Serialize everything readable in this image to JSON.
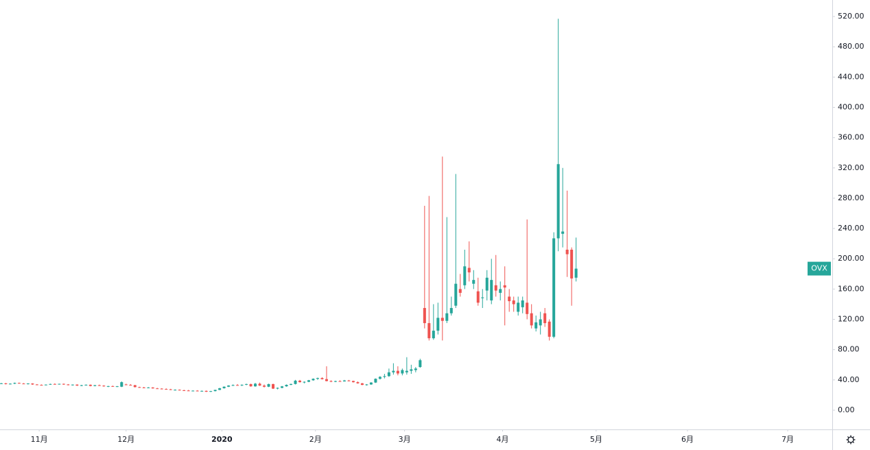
{
  "chart_data": {
    "type": "candlestick",
    "categories": [
      null,
      null,
      null,
      null,
      null,
      null,
      null,
      null,
      null,
      null,
      null,
      null,
      null,
      null,
      null,
      null,
      null,
      null,
      null,
      null,
      null,
      null,
      null,
      null,
      null,
      null,
      null,
      null,
      null,
      null,
      null,
      null,
      null,
      null,
      null,
      null,
      null,
      null,
      null,
      null,
      null,
      null,
      null,
      null,
      null,
      null,
      null,
      null,
      null,
      null,
      null,
      null,
      null,
      null,
      null,
      null,
      null,
      null,
      null,
      null,
      null,
      null,
      null,
      null,
      null,
      null,
      null,
      null,
      null,
      null,
      null,
      null,
      null,
      null,
      null,
      null,
      null,
      null,
      null,
      null,
      null,
      null,
      null,
      null,
      null,
      null,
      null,
      null,
      null,
      null,
      null,
      null,
      null,
      null,
      null,
      null,
      null,
      null,
      null,
      null,
      null,
      null,
      null,
      null,
      null,
      null,
      null,
      null,
      null,
      null,
      null,
      null,
      null,
      null,
      null,
      null,
      null,
      null,
      null,
      null,
      null,
      null,
      null,
      null,
      null,
      null,
      null,
      null,
      null,
      null
    ],
    "series": [
      {
        "name": "OVX",
        "up_color": "#26a69a",
        "down_color": "#ef5350",
        "ohlc": [
          [
            35,
            36,
            34.5,
            35.5
          ],
          [
            35.5,
            36,
            34,
            34.5
          ],
          [
            34.5,
            35.5,
            34,
            35
          ],
          [
            35,
            36.5,
            34.5,
            36
          ],
          [
            36,
            36.5,
            35,
            35.2
          ],
          [
            35.2,
            35.8,
            34.5,
            34.8
          ],
          [
            34.8,
            35.5,
            34,
            35.3
          ],
          [
            35.3,
            35.6,
            33.5,
            34
          ],
          [
            34,
            34.5,
            33,
            33.5
          ],
          [
            33.5,
            34,
            32.5,
            33.2
          ],
          [
            33.2,
            34,
            32.8,
            33.8
          ],
          [
            33.8,
            35,
            33.5,
            34.6
          ],
          [
            34.6,
            35.5,
            34,
            34.2
          ],
          [
            34.2,
            35,
            33.8,
            34.8
          ],
          [
            34.8,
            35.2,
            33.5,
            34
          ],
          [
            34,
            34.5,
            32.8,
            33.2
          ],
          [
            33.2,
            34,
            32.5,
            33.8
          ],
          [
            33.8,
            34.2,
            32,
            32.5
          ],
          [
            32.5,
            33.5,
            31.8,
            33
          ],
          [
            33,
            34,
            32.5,
            33.6
          ],
          [
            33.6,
            34,
            31.5,
            32
          ],
          [
            32,
            33.5,
            31.5,
            33
          ],
          [
            33,
            33.8,
            32,
            32.4
          ],
          [
            32.4,
            33,
            31,
            31.5
          ],
          [
            31.5,
            32.2,
            30.5,
            31.8
          ],
          [
            31.8,
            32.5,
            31,
            31.2
          ],
          [
            31.2,
            32,
            30.5,
            31.6
          ],
          [
            31,
            38,
            30.5,
            37
          ],
          [
            34,
            35,
            33,
            33.5
          ],
          [
            33.5,
            34.5,
            32.5,
            33
          ],
          [
            33,
            33.5,
            30,
            30.5
          ],
          [
            30.5,
            31,
            29.5,
            30
          ],
          [
            30,
            30.8,
            29,
            29.6
          ],
          [
            29.6,
            30.5,
            29,
            30
          ],
          [
            30,
            30.4,
            28.5,
            28.8
          ],
          [
            28.8,
            29.5,
            28,
            28.5
          ],
          [
            28.5,
            29,
            27.5,
            28
          ],
          [
            28,
            28.8,
            27.2,
            27.6
          ],
          [
            27.6,
            28.2,
            26.5,
            26.8
          ],
          [
            26.8,
            27.5,
            26,
            27
          ],
          [
            27,
            27.4,
            26,
            26.3
          ],
          [
            26.3,
            27,
            25.5,
            26
          ],
          [
            26,
            26.8,
            25.2,
            25.6
          ],
          [
            25.6,
            26.2,
            25,
            25.8
          ],
          [
            25.8,
            26.4,
            24.8,
            25.2
          ],
          [
            25.2,
            26,
            24.5,
            25.5
          ],
          [
            25.5,
            26,
            24,
            24.4
          ],
          [
            24.4,
            25.5,
            24,
            25.2
          ],
          [
            25.2,
            27,
            24.8,
            26.8
          ],
          [
            26.8,
            29.5,
            26.5,
            29
          ],
          [
            29,
            31.5,
            28.5,
            31
          ],
          [
            31,
            33,
            30.5,
            32.6
          ],
          [
            32.6,
            34,
            32,
            33.2
          ],
          [
            33.2,
            34.5,
            32.5,
            32.8
          ],
          [
            32.8,
            34,
            32,
            33.6
          ],
          [
            33.6,
            35,
            33,
            34.5
          ],
          [
            34.5,
            35,
            31,
            31.5
          ],
          [
            31.5,
            36,
            31,
            35
          ],
          [
            35,
            36.5,
            32,
            32.5
          ],
          [
            32.5,
            34,
            30,
            31
          ],
          [
            31,
            35,
            30.5,
            34.5
          ],
          [
            34.5,
            35,
            28,
            28.5
          ],
          [
            28.5,
            30,
            27.5,
            29.5
          ],
          [
            29.5,
            32,
            29,
            31.5
          ],
          [
            31.5,
            34,
            31,
            33.5
          ],
          [
            33.5,
            35,
            33,
            34.6
          ],
          [
            34.6,
            40,
            34,
            39
          ],
          [
            39,
            40,
            36.5,
            37
          ],
          [
            37,
            38,
            35.5,
            37.5
          ],
          [
            37.5,
            40,
            37,
            39.5
          ],
          [
            39.5,
            42,
            39,
            41.5
          ],
          [
            41.5,
            43,
            40,
            42.5
          ],
          [
            42.5,
            43.5,
            40.5,
            41
          ],
          [
            41,
            58,
            38,
            38.5
          ],
          [
            38.5,
            39.5,
            37,
            37.6
          ],
          [
            37.6,
            39,
            37,
            38.4
          ],
          [
            38.4,
            39.5,
            37.5,
            38
          ],
          [
            38,
            40,
            37.8,
            39.2
          ],
          [
            39.2,
            40,
            38,
            38.6
          ],
          [
            38.6,
            39,
            36.5,
            37
          ],
          [
            37,
            38,
            35,
            35.5
          ],
          [
            35.5,
            36,
            33,
            33.4
          ],
          [
            33.4,
            34.5,
            32.5,
            34
          ],
          [
            34,
            37,
            33.5,
            36.5
          ],
          [
            36.5,
            42,
            36,
            41.5
          ],
          [
            41.5,
            45,
            40.5,
            44
          ],
          [
            44,
            48,
            42,
            45
          ],
          [
            45,
            55,
            44,
            50
          ],
          [
            50,
            62,
            47,
            52
          ],
          [
            52,
            58,
            46,
            48.5
          ],
          [
            48.5,
            55,
            46,
            53
          ],
          [
            50,
            70,
            47,
            52
          ],
          [
            52,
            60,
            48,
            54
          ],
          [
            53,
            57,
            50,
            55
          ],
          [
            57,
            68,
            56,
            66
          ],
          [
            135,
            270,
            108,
            115
          ],
          [
            115,
            283,
            92,
            95
          ],
          [
            95,
            140,
            93,
            105
          ],
          [
            105,
            142,
            100,
            122
          ],
          [
            122,
            335,
            92,
            118
          ],
          [
            118,
            255,
            115,
            128
          ],
          [
            128,
            150,
            125,
            135
          ],
          [
            138,
            312,
            135,
            167
          ],
          [
            160,
            180,
            150,
            155
          ],
          [
            165,
            212,
            160,
            190
          ],
          [
            188,
            223,
            170,
            182
          ],
          [
            167,
            185,
            160,
            172
          ],
          [
            157,
            175,
            138,
            142
          ],
          [
            148,
            160,
            135,
            149
          ],
          [
            158,
            185,
            145,
            175
          ],
          [
            145,
            200,
            140,
            172
          ],
          [
            165,
            205,
            150,
            158
          ],
          [
            155,
            170,
            145,
            160
          ],
          [
            165,
            190,
            112,
            162
          ],
          [
            150,
            160,
            130,
            144
          ],
          [
            145,
            150,
            130,
            140
          ],
          [
            130,
            150,
            125,
            142
          ],
          [
            136,
            150,
            128,
            145
          ],
          [
            142,
            252,
            120,
            127
          ],
          [
            128,
            140,
            108,
            112
          ],
          [
            108,
            125,
            104,
            116
          ],
          [
            112,
            130,
            100,
            120
          ],
          [
            128,
            135,
            110,
            115
          ],
          [
            117,
            120,
            92,
            97
          ],
          [
            97,
            235,
            95,
            227
          ],
          [
            227,
            517,
            210,
            325
          ],
          [
            233,
            320,
            215,
            236
          ],
          [
            212,
            290,
            176,
            206
          ],
          [
            212,
            215,
            138,
            174
          ],
          [
            175,
            228,
            170,
            187
          ]
        ]
      }
    ],
    "xlim": [
      -0.3,
      186.5
    ],
    "xticks": [
      {
        "value": 8.5,
        "label": "11月"
      },
      {
        "value": 28,
        "label": "12月"
      },
      {
        "value": 49.5,
        "label": "2020"
      },
      {
        "value": 70.5,
        "label": "2月"
      },
      {
        "value": 90.5,
        "label": "3月"
      },
      {
        "value": 112.5,
        "label": "4月"
      },
      {
        "value": 133.5,
        "label": "5月"
      },
      {
        "value": 154,
        "label": "6月"
      },
      {
        "value": 176.5,
        "label": "7月"
      }
    ],
    "ylim": [
      -25.4,
      541.8
    ],
    "yticks": [
      {
        "value": 0,
        "label": "0.00"
      },
      {
        "value": 40,
        "label": "40.00"
      },
      {
        "value": 80,
        "label": "80.00"
      },
      {
        "value": 120,
        "label": "120.00"
      },
      {
        "value": 160,
        "label": "160.00"
      },
      {
        "value": 200,
        "label": "200.00"
      },
      {
        "value": 240,
        "label": "240.00"
      },
      {
        "value": 280,
        "label": "280.00"
      },
      {
        "value": 320,
        "label": "320.00"
      },
      {
        "value": 360,
        "label": "360.00"
      },
      {
        "value": 400,
        "label": "400.00"
      },
      {
        "value": 440,
        "label": "440.00"
      },
      {
        "value": 480,
        "label": "480.00"
      },
      {
        "value": 520,
        "label": "520.00"
      }
    ],
    "grid": false
  }
}
